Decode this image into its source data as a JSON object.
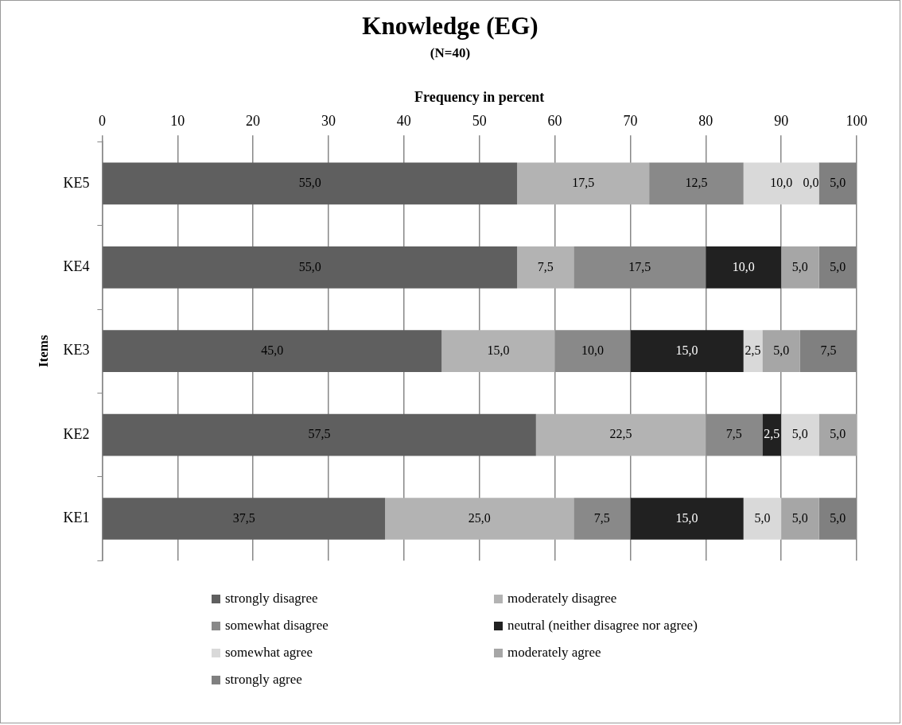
{
  "chart_data": {
    "type": "bar",
    "orientation": "horizontal",
    "stacked": true,
    "title": "Knowledge (EG)",
    "subtitle": "(N=40)",
    "xlabel": "Frequency in percent",
    "ylabel": "Items",
    "categories": [
      "KE5",
      "KE4",
      "KE3",
      "KE2",
      "KE1"
    ],
    "xlim": [
      0,
      100
    ],
    "xticks": [
      0,
      10,
      20,
      30,
      40,
      50,
      60,
      70,
      80,
      90,
      100
    ],
    "grid": "x",
    "legend": "bottom",
    "series": [
      {
        "name": "strongly disagree",
        "color": "#5f5f5f",
        "values": [
          55,
          55,
          45,
          57.5,
          37.5
        ],
        "value_labels": [
          "55,0",
          "55,0",
          "45,0",
          "57,5",
          "37,5"
        ]
      },
      {
        "name": "moderately disagree",
        "color": "#b3b3b3",
        "values": [
          17.5,
          7.5,
          15,
          22.5,
          25
        ],
        "value_labels": [
          "17,5",
          "7,5",
          "15,0",
          "22,5",
          "25,0"
        ]
      },
      {
        "name": "somewhat disagree",
        "color": "#898989",
        "values": [
          12.5,
          17.5,
          10,
          7.5,
          7.5
        ],
        "value_labels": [
          "12,5",
          "17,5",
          "10,0",
          "7,5",
          "7,5"
        ]
      },
      {
        "name": "neutral (neither disagree nor agree)",
        "color": "#212121",
        "values": [
          0,
          10,
          15,
          2.5,
          15
        ],
        "value_labels": [
          null,
          "10,0",
          "15,0",
          "2,5",
          "15,0"
        ]
      },
      {
        "name": "somewhat agree",
        "color": "#d9d9d9",
        "values": [
          10,
          0,
          2.5,
          5,
          5
        ],
        "value_labels": [
          "10,0",
          null,
          "2,5",
          "5,0",
          "5,0"
        ]
      },
      {
        "name": "moderately agree",
        "color": "#a6a6a6",
        "values": [
          0,
          5,
          5,
          5,
          5
        ],
        "value_labels": [
          "0,0",
          "5,0",
          "5,0",
          "5,0",
          "5,0"
        ]
      },
      {
        "name": "strongly agree",
        "color": "#808080",
        "values": [
          5,
          5,
          7.5,
          0,
          5
        ],
        "value_labels": [
          "5,0",
          "5,0",
          "7,5",
          null,
          "5,0"
        ]
      }
    ]
  }
}
